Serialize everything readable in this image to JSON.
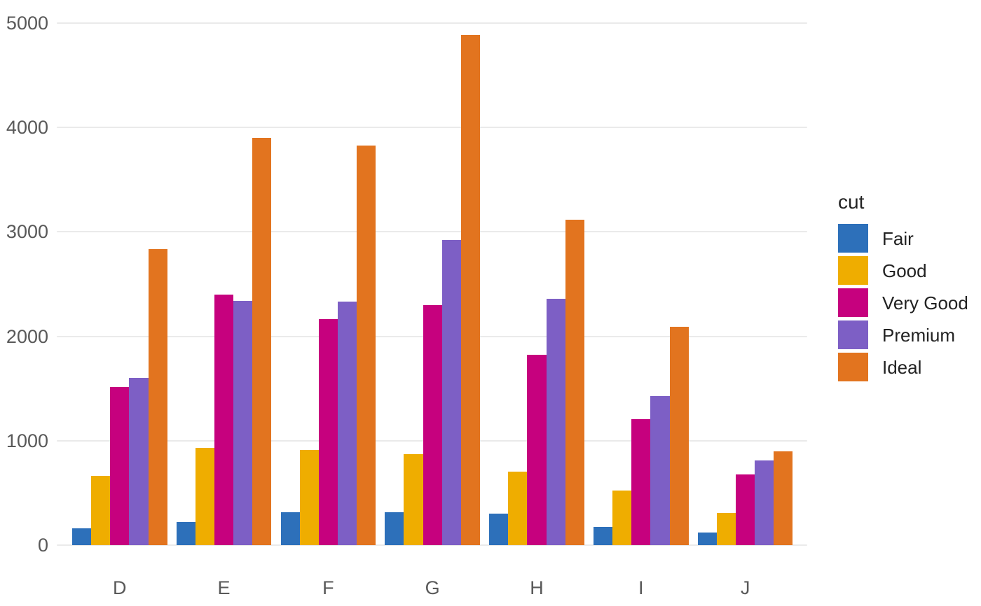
{
  "chart_data": {
    "type": "bar",
    "mode": "grouped",
    "title": "",
    "xlabel": "",
    "ylabel": "",
    "categories": [
      "D",
      "E",
      "F",
      "G",
      "H",
      "I",
      "J"
    ],
    "series": [
      {
        "name": "Fair",
        "color": "#2D70BA",
        "values": [
          163,
          224,
          312,
          314,
          303,
          175,
          119
        ]
      },
      {
        "name": "Good",
        "color": "#EFAD00",
        "values": [
          662,
          933,
          909,
          871,
          702,
          522,
          307
        ]
      },
      {
        "name": "Very Good",
        "color": "#C6017E",
        "values": [
          1513,
          2400,
          2164,
          2299,
          1824,
          1204,
          678
        ]
      },
      {
        "name": "Premium",
        "color": "#7D5FC5",
        "values": [
          1603,
          2337,
          2331,
          2924,
          2360,
          1428,
          808
        ]
      },
      {
        "name": "Ideal",
        "color": "#E2741F",
        "values": [
          2834,
          3903,
          3826,
          4884,
          3115,
          2093,
          896
        ]
      }
    ],
    "ylim": [
      0,
      5000
    ],
    "yticks": [
      0,
      1000,
      2000,
      3000,
      4000,
      5000
    ],
    "grid": true,
    "legend": {
      "title": "cut",
      "position": "right"
    }
  },
  "colors": {
    "background": "#FFFFFF",
    "gridline": "#EAEAEA",
    "axis_text": "#595959",
    "legend_text": "#222222"
  }
}
